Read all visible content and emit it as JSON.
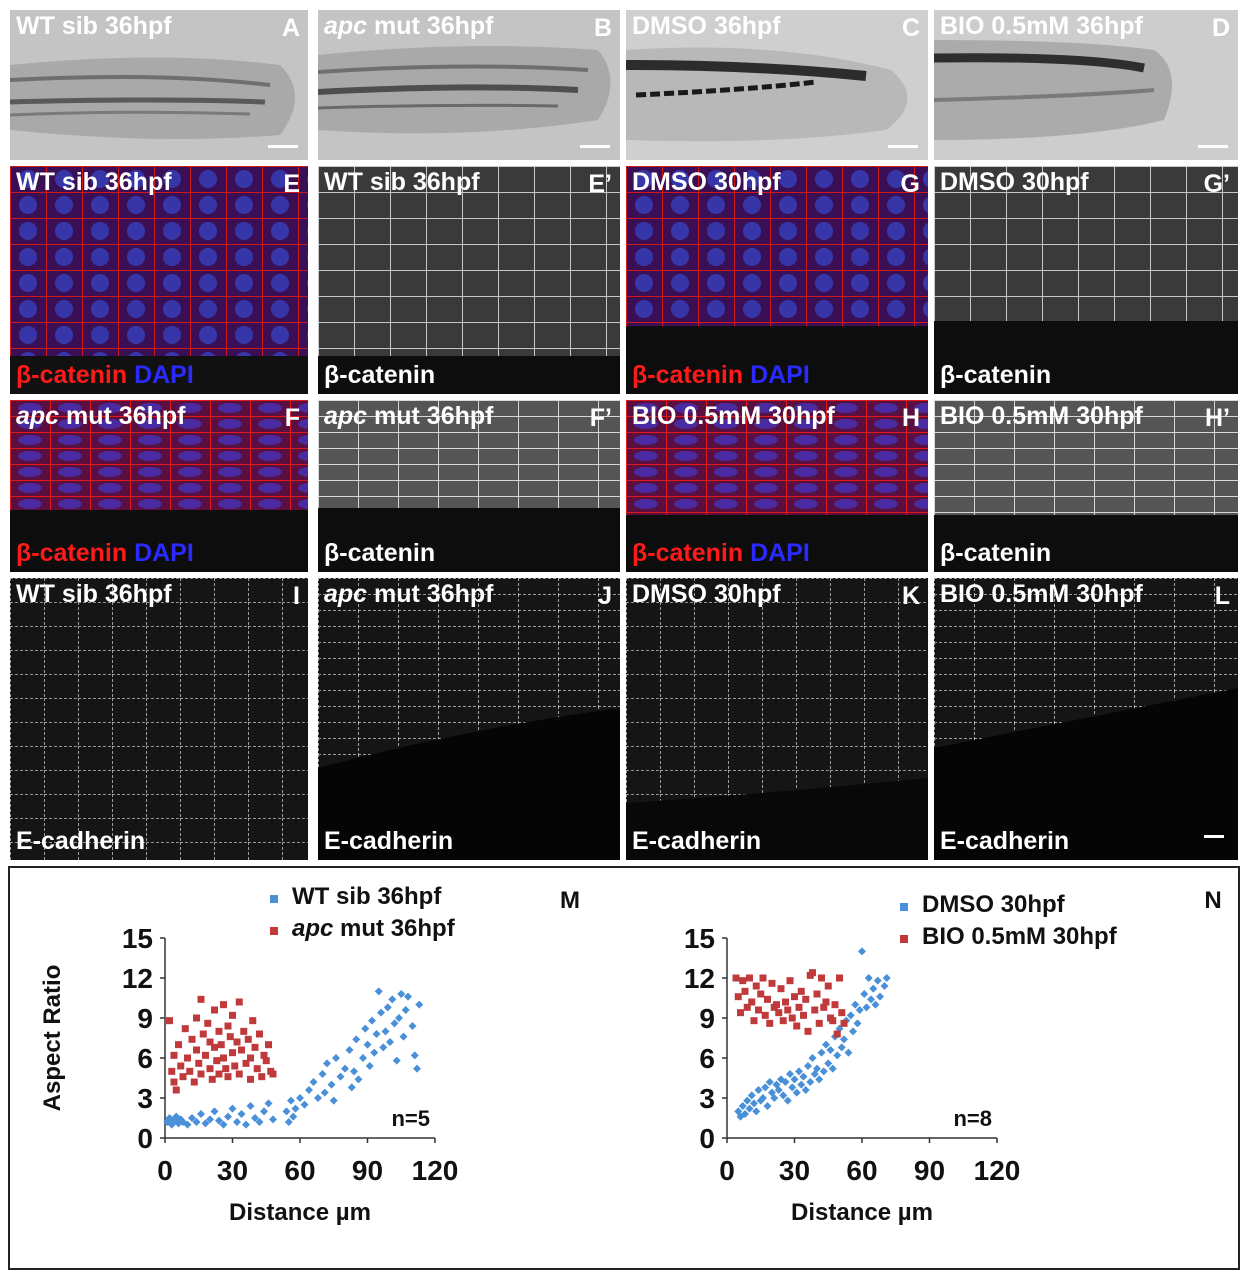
{
  "panels": {
    "A": {
      "title": "WT sib 36hpf",
      "letter": "A"
    },
    "B": {
      "title_italic": "apc",
      "title_rest": " mut 36hpf",
      "letter": "B"
    },
    "C": {
      "title": "DMSO 36hpf",
      "letter": "C"
    },
    "D": {
      "title": "BIO 0.5mM 36hpf",
      "letter": "D"
    },
    "E": {
      "title": "WT sib 36hpf",
      "letter": "E",
      "stain_red": "β-catenin",
      "stain_blue": "DAPI"
    },
    "E2": {
      "title": "WT sib 36hpf",
      "letter": "E’",
      "stain": "β-catenin"
    },
    "G": {
      "title": "DMSO 30hpf",
      "letter": "G",
      "stain_red": "β-catenin",
      "stain_blue": "DAPI"
    },
    "G2": {
      "title": "DMSO 30hpf",
      "letter": "G’",
      "stain": "β-catenin"
    },
    "F": {
      "title_italic": "apc",
      "title_rest": " mut 36hpf",
      "letter": "F",
      "stain_red": "β-catenin",
      "stain_blue": "DAPI"
    },
    "F2": {
      "title_italic": "apc",
      "title_rest": " mut 36hpf",
      "letter": "F’",
      "stain": "β-catenin"
    },
    "H": {
      "title": "BIO 0.5mM 30hpf",
      "letter": "H",
      "stain_red": "β-catenin",
      "stain_blue": "DAPI"
    },
    "H2": {
      "title": "BIO 0.5mM 30hpf",
      "letter": "H’",
      "stain": "β-catenin"
    },
    "I": {
      "title": "WT sib 36hpf",
      "letter": "I",
      "stain": "E-cadherin"
    },
    "J": {
      "title_italic": "apc",
      "title_rest": " mut 36hpf",
      "letter": "J",
      "stain": "E-cadherin"
    },
    "K": {
      "title": "DMSO 30hpf",
      "letter": "K",
      "stain": "E-cadherin"
    },
    "L": {
      "title": "BIO 0.5mM 30hpf",
      "letter": "L",
      "stain": "E-cadherin"
    }
  },
  "colors": {
    "blue_series": "#4a90d9",
    "red_series": "#c0393b"
  },
  "chart_data": [
    {
      "type": "scatter",
      "panel_letter": "M",
      "xlabel": "Distance µm",
      "ylabel": "Aspect Ratio",
      "xlim": [
        0,
        120
      ],
      "ylim": [
        0,
        15
      ],
      "xticks": [
        0,
        30,
        60,
        90,
        120
      ],
      "yticks": [
        0,
        3,
        6,
        9,
        12,
        15
      ],
      "annotation": "n=5",
      "legend_position": "top",
      "series": [
        {
          "name": "WT sib 36hpf",
          "name_italic": "",
          "name_rest": "WT sib 36hpf",
          "color": "#4a90d9",
          "points": [
            [
              1,
              1.2
            ],
            [
              2,
              1.5
            ],
            [
              3,
              1.0
            ],
            [
              4,
              1.3
            ],
            [
              5,
              1.6
            ],
            [
              6,
              1.1
            ],
            [
              7,
              1.4
            ],
            [
              8,
              1.2
            ],
            [
              10,
              1.0
            ],
            [
              12,
              1.5
            ],
            [
              14,
              1.2
            ],
            [
              16,
              1.8
            ],
            [
              18,
              1.1
            ],
            [
              20,
              1.4
            ],
            [
              22,
              2.0
            ],
            [
              24,
              1.3
            ],
            [
              26,
              1.0
            ],
            [
              28,
              1.6
            ],
            [
              30,
              2.2
            ],
            [
              32,
              1.2
            ],
            [
              34,
              1.8
            ],
            [
              36,
              1.0
            ],
            [
              38,
              2.4
            ],
            [
              40,
              1.5
            ],
            [
              42,
              1.2
            ],
            [
              44,
              2.0
            ],
            [
              46,
              2.6
            ],
            [
              48,
              1.4
            ],
            [
              54,
              2.0
            ],
            [
              55,
              1.2
            ],
            [
              56,
              2.8
            ],
            [
              57,
              1.6
            ],
            [
              58,
              2.2
            ],
            [
              60,
              3.0
            ],
            [
              62,
              2.5
            ],
            [
              64,
              3.6
            ],
            [
              66,
              4.2
            ],
            [
              68,
              3.0
            ],
            [
              70,
              4.8
            ],
            [
              71,
              3.4
            ],
            [
              72,
              5.6
            ],
            [
              74,
              4.0
            ],
            [
              75,
              2.8
            ],
            [
              76,
              6.0
            ],
            [
              78,
              4.6
            ],
            [
              80,
              5.2
            ],
            [
              82,
              6.6
            ],
            [
              83,
              3.8
            ],
            [
              84,
              5.0
            ],
            [
              85,
              7.4
            ],
            [
              86,
              4.4
            ],
            [
              88,
              6.0
            ],
            [
              89,
              8.2
            ],
            [
              90,
              7.0
            ],
            [
              91,
              5.4
            ],
            [
              92,
              8.8
            ],
            [
              93,
              6.4
            ],
            [
              94,
              7.8
            ],
            [
              95,
              11.0
            ],
            [
              96,
              9.4
            ],
            [
              97,
              6.8
            ],
            [
              98,
              8.0
            ],
            [
              99,
              9.8
            ],
            [
              100,
              7.2
            ],
            [
              101,
              10.4
            ],
            [
              102,
              8.6
            ],
            [
              103,
              5.8
            ],
            [
              104,
              9.0
            ],
            [
              105,
              10.8
            ],
            [
              106,
              7.6
            ],
            [
              107,
              9.6
            ],
            [
              108,
              10.6
            ],
            [
              110,
              8.4
            ],
            [
              111,
              6.2
            ],
            [
              112,
              5.2
            ],
            [
              113,
              10.0
            ]
          ]
        },
        {
          "name": "apc mut 36hpf",
          "name_italic": "apc",
          "name_rest": " mut 36hpf",
          "color": "#c0393b",
          "points": [
            [
              2,
              8.8
            ],
            [
              3,
              5.0
            ],
            [
              4,
              4.2
            ],
            [
              4,
              6.2
            ],
            [
              5,
              3.6
            ],
            [
              6,
              7.0
            ],
            [
              7,
              5.4
            ],
            [
              8,
              4.6
            ],
            [
              9,
              8.2
            ],
            [
              10,
              6.0
            ],
            [
              11,
              5.0
            ],
            [
              12,
              7.4
            ],
            [
              13,
              4.2
            ],
            [
              14,
              9.0
            ],
            [
              14,
              6.6
            ],
            [
              15,
              5.6
            ],
            [
              16,
              10.4
            ],
            [
              16,
              4.8
            ],
            [
              17,
              7.8
            ],
            [
              18,
              6.2
            ],
            [
              19,
              8.6
            ],
            [
              20,
              5.2
            ],
            [
              20,
              7.2
            ],
            [
              21,
              4.4
            ],
            [
              22,
              9.6
            ],
            [
              22,
              6.8
            ],
            [
              23,
              5.8
            ],
            [
              24,
              8.0
            ],
            [
              24,
              4.8
            ],
            [
              25,
              7.0
            ],
            [
              26,
              10.0
            ],
            [
              26,
              6.0
            ],
            [
              27,
              5.2
            ],
            [
              28,
              8.4
            ],
            [
              28,
              4.6
            ],
            [
              29,
              7.6
            ],
            [
              30,
              6.4
            ],
            [
              30,
              9.2
            ],
            [
              31,
              5.4
            ],
            [
              32,
              7.2
            ],
            [
              33,
              10.2
            ],
            [
              33,
              4.8
            ],
            [
              34,
              6.6
            ],
            [
              35,
              8.0
            ],
            [
              36,
              5.6
            ],
            [
              37,
              7.4
            ],
            [
              38,
              6.0
            ],
            [
              38,
              4.4
            ],
            [
              39,
              8.8
            ],
            [
              40,
              6.8
            ],
            [
              41,
              5.2
            ],
            [
              42,
              7.8
            ],
            [
              43,
              4.6
            ],
            [
              44,
              6.2
            ],
            [
              45,
              5.8
            ],
            [
              46,
              7.0
            ],
            [
              47,
              5.0
            ],
            [
              48,
              4.8
            ]
          ]
        }
      ]
    },
    {
      "type": "scatter",
      "panel_letter": "N",
      "xlabel": "Distance µm",
      "ylabel": "",
      "xlim": [
        0,
        120
      ],
      "ylim": [
        0,
        15
      ],
      "xticks": [
        0,
        30,
        60,
        90,
        120
      ],
      "yticks": [
        0,
        3,
        6,
        9,
        12,
        15
      ],
      "annotation": "n=8",
      "legend_position": "top",
      "series": [
        {
          "name": "DMSO 30hpf",
          "name_italic": "",
          "name_rest": "DMSO 30hpf",
          "color": "#4a90d9",
          "points": [
            [
              5,
              2.0
            ],
            [
              6,
              1.6
            ],
            [
              7,
              2.4
            ],
            [
              8,
              1.8
            ],
            [
              9,
              2.8
            ],
            [
              10,
              2.2
            ],
            [
              11,
              3.2
            ],
            [
              12,
              2.6
            ],
            [
              13,
              2.0
            ],
            [
              14,
              3.6
            ],
            [
              15,
              2.8
            ],
            [
              16,
              3.0
            ],
            [
              17,
              3.8
            ],
            [
              18,
              2.4
            ],
            [
              19,
              4.2
            ],
            [
              20,
              3.4
            ],
            [
              21,
              3.0
            ],
            [
              22,
              4.0
            ],
            [
              23,
              3.6
            ],
            [
              24,
              4.4
            ],
            [
              25,
              3.2
            ],
            [
              26,
              4.2
            ],
            [
              27,
              2.8
            ],
            [
              28,
              4.8
            ],
            [
              29,
              3.8
            ],
            [
              30,
              4.4
            ],
            [
              31,
              3.4
            ],
            [
              32,
              5.0
            ],
            [
              33,
              4.0
            ],
            [
              34,
              4.6
            ],
            [
              35,
              3.6
            ],
            [
              36,
              5.4
            ],
            [
              37,
              4.2
            ],
            [
              38,
              6.0
            ],
            [
              39,
              4.8
            ],
            [
              40,
              5.2
            ],
            [
              41,
              4.4
            ],
            [
              42,
              6.4
            ],
            [
              43,
              5.0
            ],
            [
              44,
              7.0
            ],
            [
              45,
              5.6
            ],
            [
              46,
              6.6
            ],
            [
              47,
              5.2
            ],
            [
              48,
              7.6
            ],
            [
              49,
              6.2
            ],
            [
              50,
              8.2
            ],
            [
              51,
              6.8
            ],
            [
              52,
              7.4
            ],
            [
              53,
              8.8
            ],
            [
              54,
              6.4
            ],
            [
              55,
              9.2
            ],
            [
              56,
              8.0
            ],
            [
              57,
              10.0
            ],
            [
              58,
              8.6
            ],
            [
              59,
              9.6
            ],
            [
              60,
              14.0
            ],
            [
              61,
              10.8
            ],
            [
              62,
              9.8
            ],
            [
              63,
              12.0
            ],
            [
              64,
              10.4
            ],
            [
              65,
              11.2
            ],
            [
              66,
              10.0
            ],
            [
              67,
              11.8
            ],
            [
              68,
              10.6
            ],
            [
              70,
              11.4
            ],
            [
              71,
              12.0
            ]
          ]
        },
        {
          "name": "BIO 0.5mM 30hpf",
          "name_italic": "",
          "name_rest": "BIO 0.5mM 30hpf",
          "color": "#c0393b",
          "points": [
            [
              4,
              12.0
            ],
            [
              5,
              10.6
            ],
            [
              6,
              9.4
            ],
            [
              7,
              11.8
            ],
            [
              8,
              11.0
            ],
            [
              9,
              9.8
            ],
            [
              10,
              12.0
            ],
            [
              11,
              10.2
            ],
            [
              12,
              8.8
            ],
            [
              13,
              11.4
            ],
            [
              14,
              9.6
            ],
            [
              15,
              10.8
            ],
            [
              16,
              12.0
            ],
            [
              17,
              9.2
            ],
            [
              18,
              10.4
            ],
            [
              19,
              8.6
            ],
            [
              20,
              11.6
            ],
            [
              21,
              9.8
            ],
            [
              22,
              10.0
            ],
            [
              23,
              9.4
            ],
            [
              24,
              11.2
            ],
            [
              25,
              8.8
            ],
            [
              26,
              10.2
            ],
            [
              27,
              9.6
            ],
            [
              28,
              11.8
            ],
            [
              29,
              9.0
            ],
            [
              30,
              10.6
            ],
            [
              31,
              8.4
            ],
            [
              32,
              9.8
            ],
            [
              33,
              11.0
            ],
            [
              34,
              9.2
            ],
            [
              35,
              10.4
            ],
            [
              36,
              8.0
            ],
            [
              37,
              12.2
            ],
            [
              38,
              12.4
            ],
            [
              39,
              9.6
            ],
            [
              40,
              10.8
            ],
            [
              41,
              8.6
            ],
            [
              42,
              12.0
            ],
            [
              43,
              9.8
            ],
            [
              44,
              10.2
            ],
            [
              45,
              11.4
            ],
            [
              46,
              9.0
            ],
            [
              47,
              8.8
            ],
            [
              48,
              10.0
            ],
            [
              49,
              7.8
            ],
            [
              50,
              12.0
            ],
            [
              51,
              9.4
            ],
            [
              52,
              8.6
            ]
          ]
        }
      ]
    }
  ]
}
